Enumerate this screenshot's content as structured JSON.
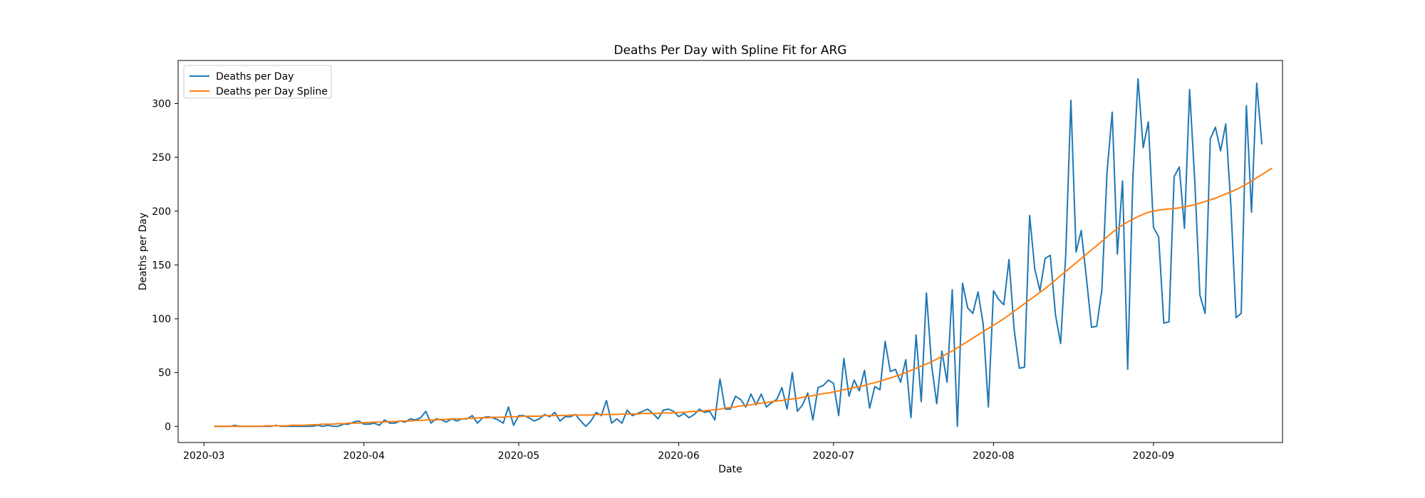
{
  "chart_data": {
    "type": "line",
    "title": "Deaths Per Day with Spline Fit for ARG",
    "xlabel": "Date",
    "ylabel": "Deaths per Day",
    "x_start": "2020-03-03",
    "xlim": [
      "2020-02-25",
      "2020-09-26"
    ],
    "ylim": [
      -15,
      340
    ],
    "x_ticks": [
      "2020-03",
      "2020-04",
      "2020-05",
      "2020-06",
      "2020-07",
      "2020-08",
      "2020-09"
    ],
    "y_ticks": [
      0,
      50,
      100,
      150,
      200,
      250,
      300
    ],
    "legend_position": "top-left",
    "grid": false,
    "series": [
      {
        "name": "Deaths per Day",
        "color": "#1f77b4",
        "values": [
          0,
          0,
          0,
          0,
          1,
          0,
          0,
          0,
          0,
          0,
          0,
          0,
          1,
          0,
          0,
          0,
          0,
          0,
          0,
          0,
          1,
          0,
          1,
          0,
          0,
          2,
          2,
          4,
          5,
          2,
          2,
          3,
          1,
          6,
          3,
          3,
          5,
          4,
          7,
          6,
          8,
          14,
          3,
          7,
          6,
          4,
          7,
          5,
          7,
          7,
          10,
          3,
          8,
          9,
          8,
          6,
          3,
          18,
          1,
          10,
          10,
          8,
          5,
          7,
          11,
          9,
          13,
          5,
          9,
          9,
          11,
          5,
          0,
          5,
          13,
          10,
          24,
          3,
          7,
          3,
          15,
          10,
          12,
          14,
          16,
          12,
          7,
          15,
          16,
          14,
          9,
          12,
          8,
          11,
          16,
          13,
          14,
          6,
          44,
          16,
          16,
          28,
          25,
          18,
          30,
          20,
          30,
          18,
          22,
          25,
          36,
          16,
          50,
          14,
          20,
          31,
          6,
          36,
          38,
          43,
          40,
          10,
          63,
          28,
          43,
          33,
          52,
          17,
          37,
          34,
          79,
          51,
          53,
          41,
          62,
          8,
          85,
          23,
          124,
          57,
          21,
          70,
          41,
          127,
          0,
          133,
          110,
          105,
          125,
          95,
          18,
          126,
          118,
          113,
          155,
          90,
          54,
          55,
          196,
          146,
          126,
          156,
          159,
          104,
          77,
          160,
          303,
          162,
          182,
          138,
          92,
          93,
          127,
          236,
          292,
          160,
          228,
          53,
          230,
          323,
          259,
          283,
          185,
          176,
          96,
          97,
          232,
          241,
          184,
          313,
          228,
          122,
          105,
          267,
          278,
          256,
          281,
          205,
          101,
          105,
          298,
          199,
          319,
          262
        ]
      },
      {
        "name": "Deaths per Day Spline",
        "color": "#ff7f0e",
        "values": [
          0,
          0,
          0,
          0,
          0,
          0,
          0,
          0,
          0,
          0,
          0.5,
          0.5,
          0.5,
          0.5,
          0.5,
          1,
          1,
          1,
          1,
          1.5,
          1.5,
          2,
          2,
          2,
          2.5,
          2.5,
          3,
          3,
          3,
          3.5,
          3.5,
          4,
          4,
          4,
          4.5,
          4.5,
          5,
          5,
          5,
          5.5,
          5.5,
          6,
          6,
          6,
          6.5,
          6.5,
          7,
          7,
          7,
          7.5,
          7.5,
          8,
          8,
          8,
          8.5,
          8.5,
          8.5,
          9,
          9,
          9,
          9.5,
          9.5,
          9.5,
          9.5,
          10,
          10,
          10,
          10,
          10,
          10.5,
          10.5,
          10.5,
          10.5,
          10.5,
          11,
          11,
          11,
          11,
          11,
          11.5,
          11.5,
          11.5,
          11.5,
          12,
          12,
          12,
          12,
          12.5,
          12.5,
          12.5,
          13,
          13,
          13.5,
          14,
          14,
          14.5,
          15,
          15.5,
          16,
          17,
          17.5,
          18,
          19,
          19.5,
          20,
          21,
          21.5,
          22,
          23,
          23.5,
          24,
          25,
          25.5,
          26,
          27,
          28,
          28.5,
          29.5,
          30.5,
          31,
          32,
          33,
          34,
          35,
          36,
          37,
          38,
          39.5,
          40.5,
          42,
          43.5,
          45,
          46.5,
          48,
          50,
          52,
          54,
          56,
          58,
          60,
          62.5,
          65,
          67.5,
          70,
          73,
          76,
          79,
          82,
          85,
          88,
          91,
          94,
          97,
          100,
          103.5,
          107,
          110.5,
          114,
          117.5,
          121,
          124.5,
          128,
          132,
          136,
          140,
          144,
          148,
          152,
          156,
          160,
          164,
          168,
          172,
          176,
          180,
          184,
          187,
          190,
          192.5,
          195,
          197,
          199,
          200,
          201,
          201.5,
          202,
          202.5,
          203,
          204,
          205,
          206,
          207.5,
          209,
          210.5,
          212,
          214,
          216,
          218,
          220,
          222.5,
          225,
          228,
          231,
          234,
          237,
          240
        ]
      }
    ]
  }
}
